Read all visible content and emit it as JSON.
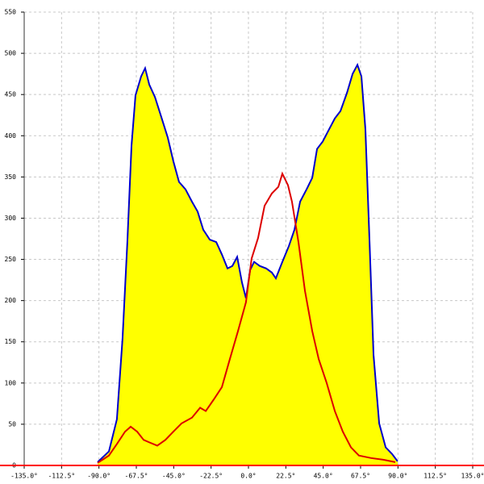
{
  "chart_data": {
    "type": "area",
    "xlim": [
      -135,
      135
    ],
    "ylim": [
      0,
      550
    ],
    "xticks": [
      {
        "value": -135,
        "label": "-135.0°"
      },
      {
        "value": -112.5,
        "label": "-112.5°"
      },
      {
        "value": -90,
        "label": "-90.0°"
      },
      {
        "value": -67.5,
        "label": "-67.5°"
      },
      {
        "value": -45,
        "label": "-45.0°"
      },
      {
        "value": -22.5,
        "label": "-22.5°"
      },
      {
        "value": 0,
        "label": "0.0°"
      },
      {
        "value": 22.5,
        "label": "22.5°"
      },
      {
        "value": 45,
        "label": "45.0°"
      },
      {
        "value": 67.5,
        "label": "67.5°"
      },
      {
        "value": 90,
        "label": "90.0°"
      },
      {
        "value": 112.5,
        "label": "112.5°"
      },
      {
        "value": 135,
        "label": "135.0°"
      }
    ],
    "yticks": [
      0,
      50,
      100,
      150,
      200,
      250,
      300,
      350,
      400,
      450,
      500,
      550
    ],
    "grid": true,
    "baseline_color": "#ff0000",
    "series": [
      {
        "color": "#0000cc",
        "fill": "#ffff00",
        "x": [
          -90.8,
          -84,
          -79.2,
          -75.8,
          -72.9,
          -70.4,
          -68,
          -64.6,
          -62.2,
          -59.7,
          -56.3,
          -52.5,
          -48.6,
          -45.2,
          -41.8,
          -37.9,
          -34,
          -30.6,
          -27.2,
          -23.3,
          -19.4,
          -16,
          -12.6,
          -9.7,
          -6.8,
          -3.9,
          -1.5,
          1,
          3.4,
          6.8,
          10.7,
          14.1,
          16.5,
          20.4,
          24.3,
          27.7,
          31.1,
          35,
          38.4,
          41.3,
          44.7,
          48.6,
          52,
          55.4,
          59.3,
          62.7,
          65.6,
          68,
          70.4,
          72.9,
          75.3,
          78.7,
          82.6,
          86.4,
          89.8
        ],
        "values": [
          4,
          17,
          56,
          154,
          271,
          388,
          449,
          472,
          482,
          462,
          447,
          423,
          398,
          369,
          344,
          335,
          320,
          308,
          286,
          274,
          271,
          256,
          239,
          242,
          253,
          222,
          203,
          237,
          247,
          242,
          239,
          234,
          227,
          247,
          266,
          286,
          320,
          335,
          349,
          384,
          393,
          408,
          421,
          430,
          452,
          475,
          486,
          472,
          408,
          271,
          134,
          51,
          22,
          14,
          5
        ]
      },
      {
        "color": "#dd0000",
        "x": [
          -90.8,
          -84,
          -79.2,
          -74.3,
          -70.9,
          -67,
          -63.1,
          -59.7,
          -54.9,
          -50,
          -45.2,
          -40.3,
          -34,
          -29.1,
          -25.7,
          -20.9,
          -16,
          -11.2,
          -6.3,
          -1.5,
          1.9,
          5.8,
          9.7,
          14.1,
          18,
          20.4,
          23.8,
          26.2,
          30.1,
          34,
          38.4,
          42.3,
          47.1,
          52,
          56.8,
          61.7,
          66.5,
          73.8,
          81.1,
          88.4
        ],
        "values": [
          3,
          12,
          26,
          41,
          47,
          41,
          31,
          28,
          24,
          31,
          41,
          51,
          58,
          70,
          66,
          80,
          95,
          129,
          163,
          198,
          251,
          276,
          315,
          330,
          338,
          354,
          340,
          320,
          271,
          212,
          163,
          129,
          100,
          66,
          41,
          22,
          12,
          9,
          7,
          4
        ]
      }
    ]
  }
}
